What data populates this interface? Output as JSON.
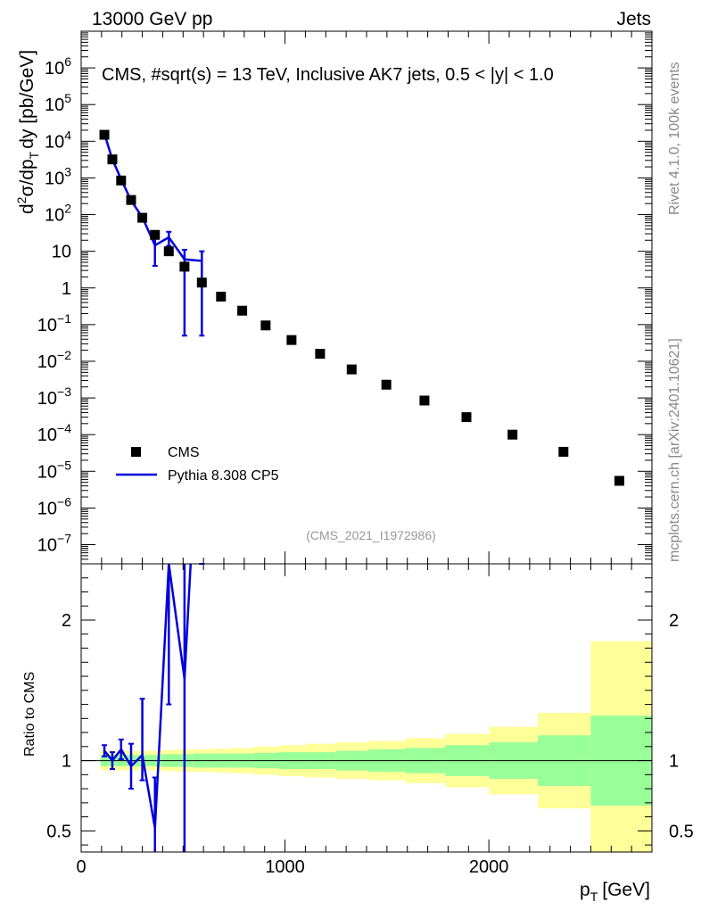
{
  "header": {
    "left": "13000 GeV pp",
    "right": "Jets"
  },
  "side": {
    "rivet": "Rivet 4.1.0,  100k events",
    "mcplots": "mcplots.cern.ch [arXiv:2401.10621]"
  },
  "colors": {
    "mc": "#0000dd",
    "data": "#000000",
    "band_inner": "#99ff99",
    "band_outer": "#ffff99",
    "watermark": "#999999"
  },
  "chart_data": [
    {
      "type": "scatter",
      "panel": "main",
      "title": "CMS, #sqrt(s) = 13 TeV, Inclusive AK7 jets, 0.5 < |y| < 1.0",
      "ylabel": "d²σ/dp_T dy [pb/GeV]",
      "ylabel_parts": {
        "d": "d",
        "sup2": "2",
        "sigma": "σ/dp",
        "subT": "T",
        "rest": "dy [pb/GeV]"
      },
      "yscale": "log",
      "xlim": [
        0,
        2800
      ],
      "ylim": [
        3e-08,
        10000000
      ],
      "ytick_labels": [
        {
          "value": 1000000,
          "base": "10",
          "exp": "6"
        },
        {
          "value": 100000,
          "base": "10",
          "exp": "5"
        },
        {
          "value": 10000,
          "base": "10",
          "exp": "4"
        },
        {
          "value": 1000,
          "base": "10",
          "exp": "3"
        },
        {
          "value": 100,
          "base": "10",
          "exp": "2"
        },
        {
          "value": 10,
          "base": "10",
          "exp": ""
        },
        {
          "value": 1,
          "base": "1",
          "exp": ""
        },
        {
          "value": 0.1,
          "base": "10",
          "exp": "−1"
        },
        {
          "value": 0.01,
          "base": "10",
          "exp": "−2"
        },
        {
          "value": 0.001,
          "base": "10",
          "exp": "−3"
        },
        {
          "value": 0.0001,
          "base": "10",
          "exp": "−4"
        },
        {
          "value": 1e-05,
          "base": "10",
          "exp": "−5"
        },
        {
          "value": 1e-06,
          "base": "10",
          "exp": "−6"
        },
        {
          "value": 1e-07,
          "base": "10",
          "exp": "−7"
        }
      ],
      "watermark": "(CMS_2021_I1972986)",
      "legend": {
        "position": "lower-left",
        "entries": [
          "CMS",
          "Pythia 8.308 CP5"
        ]
      },
      "series": [
        {
          "name": "CMS",
          "style": "markers",
          "x": [
            114,
            153,
            196,
            245,
            300,
            362,
            430,
            507,
            592,
            686,
            790,
            905,
            1032,
            1172,
            1327,
            1497,
            1684,
            1890,
            2116,
            2366,
            2640
          ],
          "y": [
            15000,
            3200,
            850,
            250,
            82,
            28,
            10,
            3.8,
            1.4,
            0.58,
            0.24,
            0.095,
            0.038,
            0.016,
            0.006,
            0.0023,
            0.00085,
            0.0003,
            0.0001,
            3.4e-05,
            5.5e-06
          ]
        },
        {
          "name": "Pythia 8.308 CP5",
          "style": "line",
          "x": [
            114,
            153,
            196,
            245,
            300,
            362,
            430,
            507,
            592
          ],
          "y": [
            16000,
            3200,
            920,
            240,
            85,
            14.5,
            24,
            6,
            5.5
          ],
          "yerr_low": [
            700,
            200,
            80,
            40,
            15,
            10.5,
            10,
            5.95,
            5.45
          ],
          "yerr_high": [
            700,
            200,
            80,
            40,
            15,
            8,
            10,
            5,
            4.5
          ]
        }
      ]
    },
    {
      "type": "line",
      "panel": "ratio",
      "ylabel": "Ratio to CMS",
      "xlabel": "p_T [GeV]",
      "xlabel_parts": {
        "p": "p",
        "subT": "T",
        "unit": "[GeV]"
      },
      "xlim": [
        0,
        2800
      ],
      "ylim": [
        0.35,
        2.4
      ],
      "xticks": [
        0,
        1000,
        2000
      ],
      "xtick_labels": [
        "0",
        "1000",
        "2000"
      ],
      "yticks": [
        0.5,
        1,
        2
      ],
      "ytick_labels": [
        "0.5",
        "1",
        "2"
      ],
      "reference_line": 1,
      "bands": {
        "edges": [
          95,
          133,
          174,
          220,
          272,
          330,
          395,
          468,
          548,
          638,
          737,
          846,
          967,
          1100,
          1248,
          1411,
          1590,
          1786,
          2002,
          2240,
          2500,
          2800
        ],
        "inner": [
          0.04,
          0.04,
          0.04,
          0.04,
          0.04,
          0.04,
          0.045,
          0.045,
          0.05,
          0.05,
          0.05,
          0.055,
          0.06,
          0.06,
          0.07,
          0.08,
          0.09,
          0.11,
          0.13,
          0.18,
          0.32
        ],
        "outer": [
          0.07,
          0.07,
          0.07,
          0.07,
          0.07,
          0.07,
          0.075,
          0.08,
          0.08,
          0.085,
          0.09,
          0.1,
          0.11,
          0.12,
          0.13,
          0.14,
          0.16,
          0.19,
          0.24,
          0.34,
          0.85
        ]
      },
      "series": [
        {
          "name": "Pythia 8.308 CP5",
          "x": [
            114,
            153,
            196,
            245,
            300,
            362,
            430,
            507,
            592
          ],
          "y": [
            1.07,
            1.0,
            1.08,
            0.96,
            1.04,
            0.52,
            2.4,
            1.58,
            3.9
          ],
          "yerr_low": [
            0.04,
            0.06,
            0.07,
            0.16,
            0.18,
            0.5,
            1.0,
            1.57,
            1.0
          ],
          "yerr_high": [
            0.04,
            0.06,
            0.07,
            0.16,
            0.4,
            0.36,
            1.0,
            1.0,
            1.0
          ]
        }
      ]
    }
  ]
}
